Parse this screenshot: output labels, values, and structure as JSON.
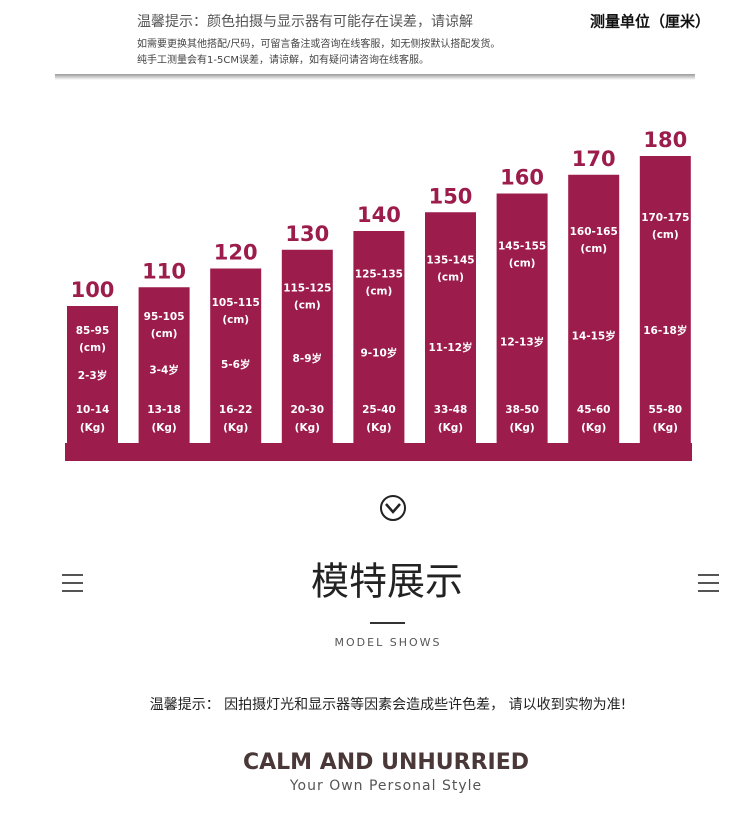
{
  "header": {
    "notice": "温馨提示：颜色拍摄与显示器有可能存在误差，请谅解",
    "unit": "测量单位（厘米）",
    "lines": [
      "如需要更换其他搭配/尺码，可留言备注或咨询在线客服，如无侧按默认搭配发货。",
      "纯手工测量会有1-5CM误差，请谅解，如有疑问请咨询在线客服。"
    ]
  },
  "chart_data": {
    "type": "bar",
    "color": "#9c1c4c",
    "values": [
      100,
      110,
      120,
      130,
      140,
      150,
      160,
      170,
      180
    ],
    "height_ranges": [
      "85-95",
      "95-105",
      "105-115",
      "115-125",
      "125-135",
      "135-145",
      "145-155",
      "160-165",
      "170-175"
    ],
    "height_unit": "(cm)",
    "ages": [
      "2-3岁",
      "3-4岁",
      "5-6岁",
      "8-9岁",
      "9-10岁",
      "11-12岁",
      "12-13岁",
      "14-15岁",
      "16-18岁"
    ],
    "weights": [
      "10-14",
      "13-18",
      "16-22",
      "20-30",
      "25-40",
      "33-48",
      "38-50",
      "45-60",
      "55-80"
    ],
    "weight_unit": "(Kg)"
  },
  "section": {
    "title": "模特展示",
    "subtitle": "MODEL SHOWS",
    "note": "温馨提示： 因拍摄灯光和显示器等因素会造成些许色差， 请以收到实物为准!",
    "slogan": "CALM AND UNHURRIED",
    "tagline": "Your Own Personal Style"
  }
}
